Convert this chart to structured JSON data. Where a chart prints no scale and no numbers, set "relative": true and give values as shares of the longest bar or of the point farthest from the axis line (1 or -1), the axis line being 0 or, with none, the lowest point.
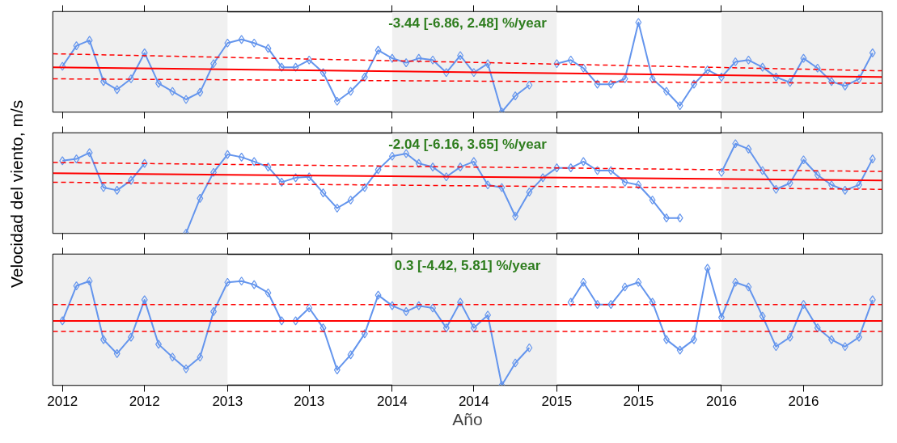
{
  "chart_data": [
    {
      "type": "line",
      "relative": true,
      "marker": "diamond",
      "line_style": "solid",
      "grid": false,
      "tick_labels": false,
      "annotations": [
        "-3.44 [-6.86, 2.48] %/year"
      ],
      "xlim": [
        "2011-12-11",
        "2016-12-22"
      ],
      "xticks": [
        {
          "value": "2012-01",
          "label": null
        },
        {
          "value": "2012-07",
          "label": null
        },
        {
          "value": "2013-01",
          "label": null
        },
        {
          "value": "2013-07",
          "label": null
        },
        {
          "value": "2014-01",
          "label": null
        },
        {
          "value": "2014-07",
          "label": null
        },
        {
          "value": "2015-01",
          "label": null
        },
        {
          "value": "2015-07",
          "label": null
        },
        {
          "value": "2016-01",
          "label": null
        },
        {
          "value": "2016-07",
          "label": null
        }
      ],
      "bands": [
        {
          "axis": "x",
          "from": "2011-12-11",
          "to": "2013-01-01",
          "color": "#f0f0f0"
        },
        {
          "axis": "x",
          "from": "2014-01-01",
          "to": "2015-01-01",
          "color": "#f0f0f0"
        },
        {
          "axis": "x",
          "from": "2016-01-01",
          "to": "2016-12-22",
          "color": "#f0f0f0"
        }
      ],
      "x": [
        "2012-01",
        "2012-02",
        "2012-03",
        "2012-04",
        "2012-05",
        "2012-06",
        "2012-07",
        "2012-08",
        "2012-09",
        "2012-10",
        "2012-11",
        "2012-12",
        "2013-01",
        "2013-02",
        "2013-03",
        "2013-04",
        "2013-05",
        "2013-06",
        "2013-07",
        "2013-08",
        "2013-09",
        "2013-10",
        "2013-11",
        "2013-12",
        "2014-01",
        "2014-02",
        "2014-03",
        "2014-04",
        "2014-05",
        "2014-06",
        "2014-07",
        "2014-08",
        "2014-09",
        "2014-10",
        "2014-11",
        "2014-12",
        "2015-01",
        "2015-02",
        "2015-03",
        "2015-04",
        "2015-05",
        "2015-06",
        "2015-07",
        "2015-08",
        "2015-09",
        "2015-10",
        "2015-11",
        "2015-12",
        "2016-01",
        "2016-02",
        "2016-03",
        "2016-04",
        "2016-05",
        "2016-06",
        "2016-07",
        "2016-08",
        "2016-09",
        "2016-10",
        "2016-11",
        "2016-12"
      ],
      "series": [
        {
          "color": "#6495ed",
          "values": [
            0.51,
            0.74,
            0.8,
            0.34,
            0.25,
            0.37,
            0.66,
            0.32,
            0.23,
            0.14,
            0.22,
            0.54,
            0.77,
            0.81,
            0.77,
            0.71,
            0.5,
            0.5,
            0.58,
            0.44,
            0.12,
            0.23,
            0.39,
            0.69,
            0.6,
            0.55,
            0.6,
            0.58,
            0.44,
            0.63,
            0.44,
            0.54,
            0.0,
            0.18,
            0.3,
            null,
            0.54,
            0.58,
            0.49,
            0.31,
            0.31,
            0.37,
            1.0,
            0.37,
            0.23,
            0.07,
            0.31,
            0.47,
            0.39,
            0.56,
            0.58,
            0.5,
            0.39,
            0.33,
            0.6,
            0.49,
            0.34,
            0.29,
            0.37,
            0.66
          ]
        },
        {
          "color": "#ff0000",
          "marker": "none",
          "x": [
            "2011-12-11",
            "2016-12-22"
          ],
          "values": [
            0.5,
            0.39
          ]
        },
        {
          "color": "#ff0000",
          "marker": "none",
          "line_style": "dashed",
          "x": [
            "2011-12-11",
            "2016-12-22"
          ],
          "values": [
            0.65,
            0.46
          ]
        },
        {
          "color": "#ff0000",
          "marker": "none",
          "line_style": "dashed",
          "x": [
            "2011-12-11",
            "2016-12-22"
          ],
          "values": [
            0.37,
            0.32
          ]
        }
      ]
    },
    {
      "type": "line",
      "relative": true,
      "marker": "diamond",
      "line_style": "solid",
      "grid": false,
      "tick_labels": false,
      "ylabel": "Velocidad del viento, m/s",
      "annotations": [
        "-2.04 [-6.16, 3.65] %/year"
      ],
      "xlim": [
        "2011-12-11",
        "2016-12-22"
      ],
      "xticks": [
        {
          "value": "2012-01",
          "label": null
        },
        {
          "value": "2012-07",
          "label": null
        },
        {
          "value": "2013-01",
          "label": null
        },
        {
          "value": "2013-07",
          "label": null
        },
        {
          "value": "2014-01",
          "label": null
        },
        {
          "value": "2014-07",
          "label": null
        },
        {
          "value": "2015-01",
          "label": null
        },
        {
          "value": "2015-07",
          "label": null
        },
        {
          "value": "2016-01",
          "label": null
        },
        {
          "value": "2016-07",
          "label": null
        }
      ],
      "bands": [
        {
          "axis": "x",
          "from": "2011-12-11",
          "to": "2013-01-01",
          "color": "#f0f0f0"
        },
        {
          "axis": "x",
          "from": "2014-01-01",
          "to": "2015-01-01",
          "color": "#f0f0f0"
        },
        {
          "axis": "x",
          "from": "2016-01-01",
          "to": "2016-12-22",
          "color": "#f0f0f0"
        }
      ],
      "x": [
        "2012-01",
        "2012-02",
        "2012-03",
        "2012-04",
        "2012-05",
        "2012-06",
        "2012-07",
        "2012-08",
        "2012-09",
        "2012-10",
        "2012-11",
        "2012-12",
        "2013-01",
        "2013-02",
        "2013-03",
        "2013-04",
        "2013-05",
        "2013-06",
        "2013-07",
        "2013-08",
        "2013-09",
        "2013-10",
        "2013-11",
        "2013-12",
        "2014-01",
        "2014-02",
        "2014-03",
        "2014-04",
        "2014-05",
        "2014-06",
        "2014-07",
        "2014-08",
        "2014-09",
        "2014-10",
        "2014-11",
        "2014-12",
        "2015-01",
        "2015-02",
        "2015-03",
        "2015-04",
        "2015-05",
        "2015-06",
        "2015-07",
        "2015-08",
        "2015-09",
        "2015-10",
        "2015-11",
        "2015-12",
        "2016-01",
        "2016-02",
        "2016-03",
        "2016-04",
        "2016-05",
        "2016-06",
        "2016-07",
        "2016-08",
        "2016-09",
        "2016-10",
        "2016-11",
        "2016-12"
      ],
      "series": [
        {
          "color": "#6495ed",
          "values": [
            0.81,
            0.83,
            0.9,
            0.51,
            0.48,
            0.59,
            0.78,
            null,
            null,
            0.0,
            0.39,
            0.68,
            0.88,
            0.85,
            0.8,
            0.74,
            0.57,
            0.62,
            0.63,
            0.45,
            0.28,
            0.37,
            0.51,
            0.71,
            0.86,
            0.89,
            0.78,
            0.74,
            0.63,
            0.74,
            0.8,
            0.54,
            0.51,
            0.19,
            0.46,
            0.62,
            0.73,
            0.73,
            0.8,
            0.7,
            0.7,
            0.57,
            0.54,
            0.37,
            0.17,
            0.17,
            null,
            null,
            0.68,
            1.0,
            0.94,
            0.7,
            0.49,
            0.56,
            0.82,
            0.65,
            0.54,
            0.48,
            0.54,
            0.83
          ]
        },
        {
          "color": "#ff0000",
          "marker": "none",
          "x": [
            "2011-12-11",
            "2016-12-22"
          ],
          "values": [
            0.67,
            0.59
          ]
        },
        {
          "color": "#ff0000",
          "marker": "none",
          "line_style": "dashed",
          "x": [
            "2011-12-11",
            "2016-12-22"
          ],
          "values": [
            0.79,
            0.69
          ]
        },
        {
          "color": "#ff0000",
          "marker": "none",
          "line_style": "dashed",
          "x": [
            "2011-12-11",
            "2016-12-22"
          ],
          "values": [
            0.57,
            0.49
          ]
        }
      ]
    },
    {
      "type": "line",
      "relative": true,
      "marker": "diamond",
      "line_style": "solid",
      "grid": false,
      "tick_labels": "x",
      "xlabel": "Año",
      "annotations": [
        "0.3 [-4.42, 5.81] %/year"
      ],
      "xlim": [
        "2011-12-11",
        "2016-12-22"
      ],
      "xticks": [
        {
          "value": "2012-01",
          "label": "2012"
        },
        {
          "value": "2012-07",
          "label": "2012"
        },
        {
          "value": "2013-01",
          "label": "2013"
        },
        {
          "value": "2013-07",
          "label": "2013"
        },
        {
          "value": "2014-01",
          "label": "2014"
        },
        {
          "value": "2014-07",
          "label": "2014"
        },
        {
          "value": "2015-01",
          "label": "2015"
        },
        {
          "value": "2015-07",
          "label": "2015"
        },
        {
          "value": "2016-01",
          "label": "2016"
        },
        {
          "value": "2016-07",
          "label": "2016"
        }
      ],
      "bands": [
        {
          "axis": "x",
          "from": "2011-12-11",
          "to": "2013-01-01",
          "color": "#f0f0f0"
        },
        {
          "axis": "x",
          "from": "2014-01-01",
          "to": "2015-01-01",
          "color": "#f0f0f0"
        },
        {
          "axis": "x",
          "from": "2016-01-01",
          "to": "2016-12-22",
          "color": "#f0f0f0"
        }
      ],
      "x": [
        "2012-01",
        "2012-02",
        "2012-03",
        "2012-04",
        "2012-05",
        "2012-06",
        "2012-07",
        "2012-08",
        "2012-09",
        "2012-10",
        "2012-11",
        "2012-12",
        "2013-01",
        "2013-02",
        "2013-03",
        "2013-04",
        "2013-05",
        "2013-06",
        "2013-07",
        "2013-08",
        "2013-09",
        "2013-10",
        "2013-11",
        "2013-12",
        "2014-01",
        "2014-02",
        "2014-03",
        "2014-04",
        "2014-05",
        "2014-06",
        "2014-07",
        "2014-08",
        "2014-09",
        "2014-10",
        "2014-11",
        "2014-12",
        "2015-01",
        "2015-02",
        "2015-03",
        "2015-04",
        "2015-05",
        "2015-06",
        "2015-07",
        "2015-08",
        "2015-09",
        "2015-10",
        "2015-11",
        "2015-12",
        "2016-01",
        "2016-02",
        "2016-03",
        "2016-04",
        "2016-05",
        "2016-06",
        "2016-07",
        "2016-08",
        "2016-09",
        "2016-10",
        "2016-11",
        "2016-12"
      ],
      "series": [
        {
          "color": "#6495ed",
          "values": [
            0.55,
            0.85,
            0.89,
            0.39,
            0.27,
            0.41,
            0.73,
            0.35,
            0.24,
            0.14,
            0.24,
            0.63,
            0.88,
            0.89,
            0.86,
            0.79,
            0.55,
            0.55,
            0.66,
            0.49,
            0.13,
            0.26,
            0.44,
            0.77,
            0.68,
            0.63,
            0.68,
            0.66,
            0.49,
            0.71,
            0.49,
            0.6,
            0.0,
            0.19,
            0.32,
            null,
            null,
            0.71,
            0.88,
            0.69,
            0.69,
            0.84,
            0.88,
            0.71,
            0.39,
            0.3,
            0.39,
            1.0,
            0.58,
            0.88,
            0.84,
            0.59,
            0.33,
            0.41,
            0.69,
            0.49,
            0.39,
            0.33,
            0.41,
            0.73
          ]
        },
        {
          "color": "#ff0000",
          "marker": "none",
          "x": [
            "2011-12-11",
            "2016-12-22"
          ],
          "values": [
            0.55,
            0.55
          ]
        },
        {
          "color": "#ff0000",
          "marker": "none",
          "line_style": "dashed",
          "x": [
            "2011-12-11",
            "2016-12-22"
          ],
          "values": [
            0.69,
            0.69
          ]
        },
        {
          "color": "#ff0000",
          "marker": "none",
          "line_style": "dashed",
          "x": [
            "2011-12-11",
            "2016-12-22"
          ],
          "values": [
            0.46,
            0.46
          ]
        }
      ]
    }
  ]
}
